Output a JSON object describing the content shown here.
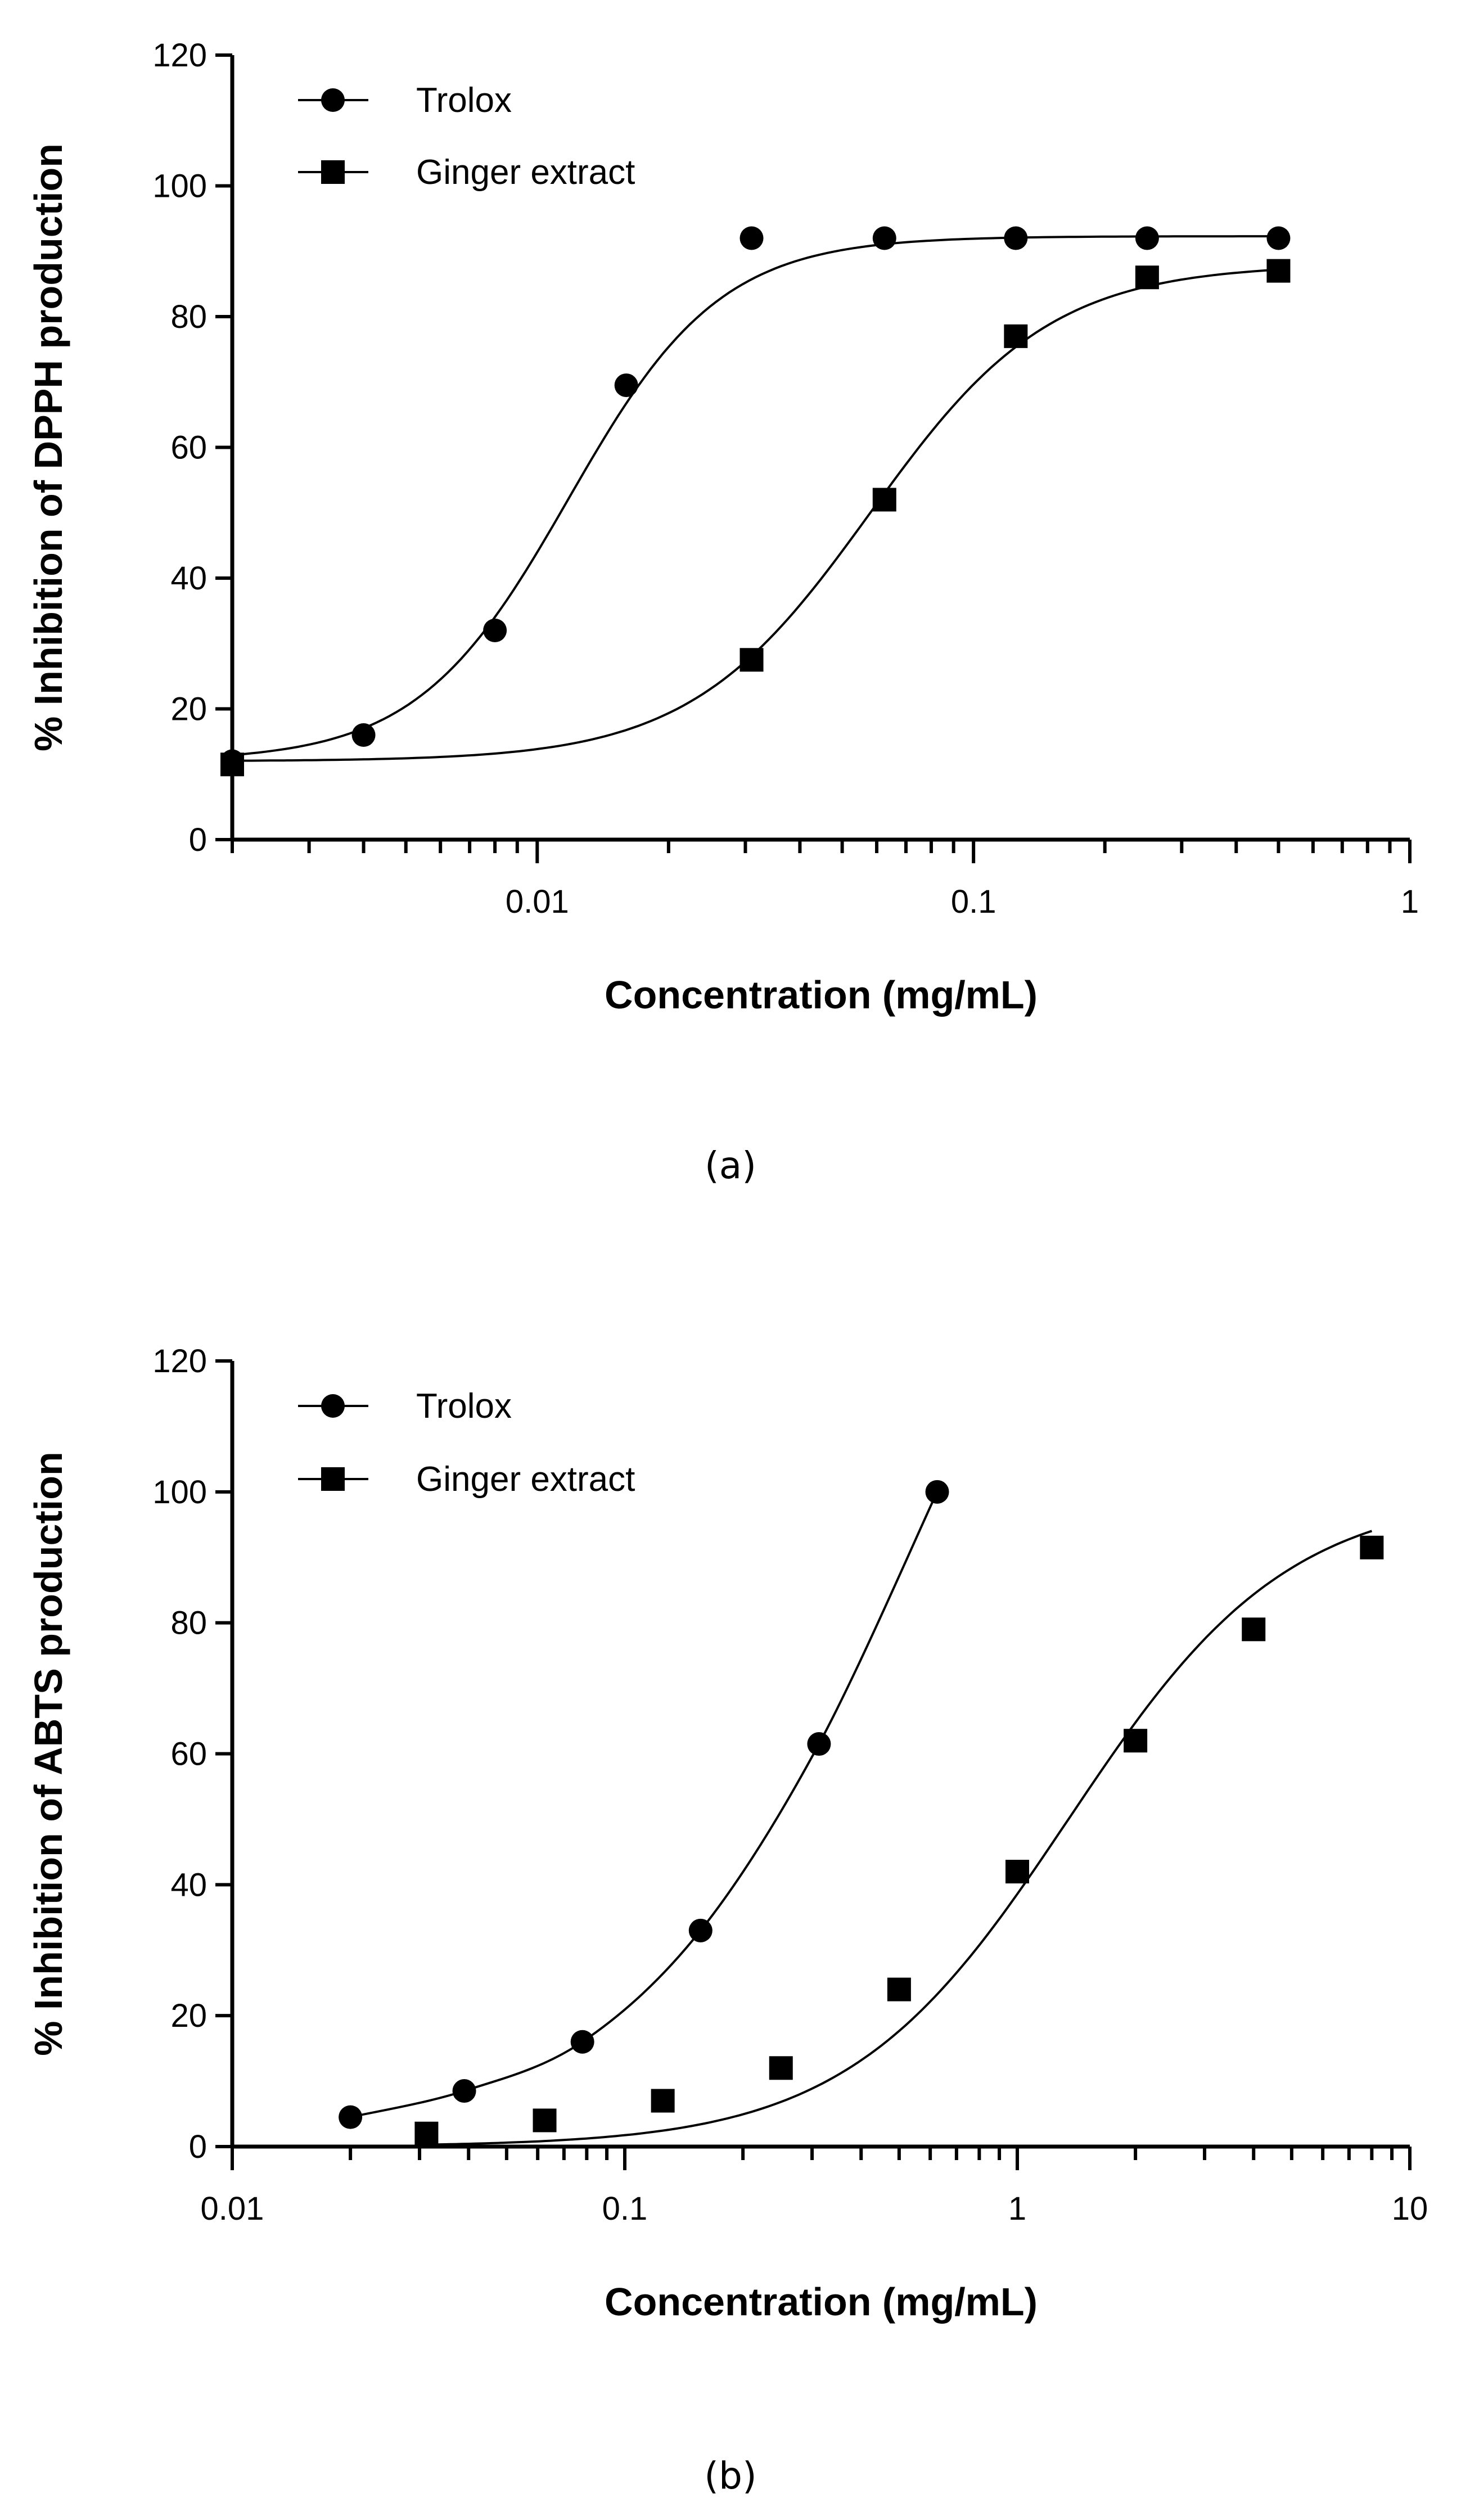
{
  "chart_data": [
    {
      "type": "scatter",
      "panel_label": "(a)",
      "xlabel": "Concentration (mg/mL)",
      "ylabel": "% Inhibition of DPPH production",
      "xscale": "log",
      "xlim": [
        0.002,
        1
      ],
      "ylim": [
        0,
        120
      ],
      "xticks": [
        {
          "value": 0.01,
          "label": "0.01"
        },
        {
          "value": 0.1,
          "label": "0.1"
        },
        {
          "value": 1,
          "label": "1"
        }
      ],
      "yticks": [
        {
          "value": 0,
          "label": "0"
        },
        {
          "value": 20,
          "label": "20"
        },
        {
          "value": 40,
          "label": "40"
        },
        {
          "value": 60,
          "label": "60"
        },
        {
          "value": 80,
          "label": "80"
        },
        {
          "value": 100,
          "label": "100"
        },
        {
          "value": 120,
          "label": "120"
        }
      ],
      "legend_position": "top-left",
      "series": [
        {
          "name": "Trolox",
          "marker": "circle",
          "x": [
            0.002,
            0.004,
            0.008,
            0.016,
            0.031,
            0.0625,
            0.125,
            0.25,
            0.5
          ],
          "y": [
            12,
            16,
            32,
            69.5,
            92,
            92,
            92,
            92,
            92
          ],
          "fit": {
            "bottom": 12,
            "top": 92.3,
            "ec50": 0.0118,
            "hill": 2.5
          }
        },
        {
          "name": "Ginger extract",
          "marker": "square",
          "x": [
            0.002,
            0.031,
            0.0625,
            0.125,
            0.25,
            0.5
          ],
          "y": [
            11.5,
            27.5,
            52,
            77,
            86,
            87
          ],
          "fit": {
            "bottom": 12,
            "top": 88,
            "ec50": 0.058,
            "hill": 2.1
          }
        }
      ]
    },
    {
      "type": "scatter",
      "panel_label": "(b)",
      "xlabel": "Concentration (mg/mL)",
      "ylabel": "% Inhibition of ABTS production",
      "xscale": "log",
      "xlim": [
        0.01,
        10
      ],
      "ylim": [
        0,
        120
      ],
      "xticks": [
        {
          "value": 0.01,
          "label": "0.01"
        },
        {
          "value": 0.1,
          "label": "0.1"
        },
        {
          "value": 1,
          "label": "1"
        },
        {
          "value": 10,
          "label": "10"
        }
      ],
      "yticks": [
        {
          "value": 0,
          "label": "0"
        },
        {
          "value": 20,
          "label": "20"
        },
        {
          "value": 40,
          "label": "40"
        },
        {
          "value": 60,
          "label": "60"
        },
        {
          "value": 80,
          "label": "80"
        },
        {
          "value": 100,
          "label": "100"
        },
        {
          "value": 120,
          "label": "120"
        }
      ],
      "legend_position": "top-left",
      "series": [
        {
          "name": "Trolox",
          "marker": "circle",
          "x": [
            0.02,
            0.039,
            0.078,
            0.156,
            0.3125,
            0.625
          ],
          "y": [
            4.5,
            8.5,
            16,
            33,
            61.5,
            100
          ]
        },
        {
          "name": "Ginger extract",
          "marker": "square",
          "x": [
            0.03125,
            0.0625,
            0.125,
            0.25,
            0.5,
            1,
            2,
            4,
            8
          ],
          "y": [
            2,
            4,
            7,
            12,
            24,
            42,
            62,
            79,
            91.5
          ],
          "fit": {
            "bottom": 0,
            "top": 100,
            "ec50": 1.35,
            "hill": 1.55
          }
        }
      ]
    }
  ]
}
